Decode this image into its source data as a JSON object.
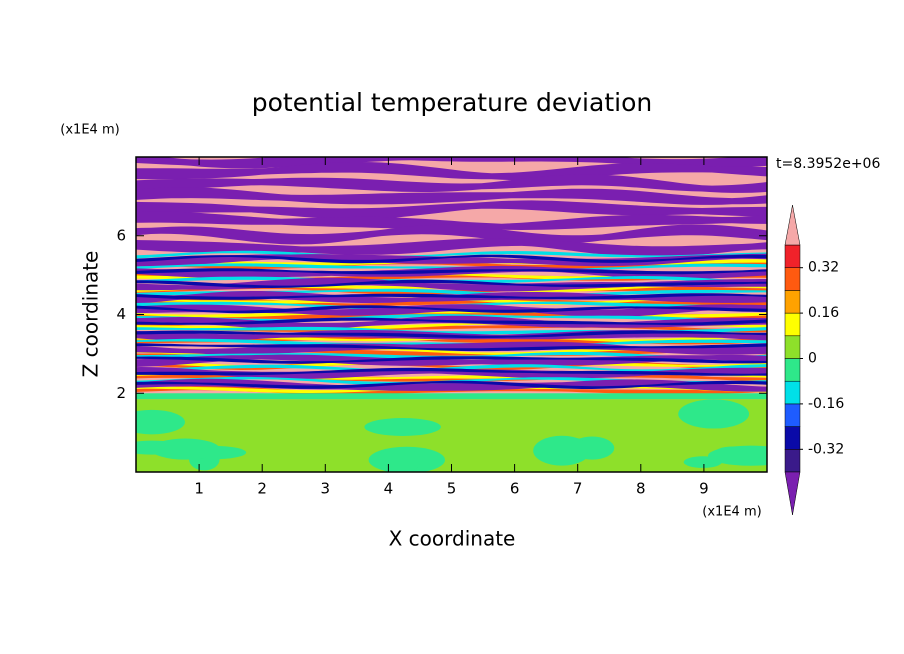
{
  "chart_data": {
    "type": "contour",
    "title": "potential temperature deviation",
    "xlabel": "X coordinate",
    "ylabel": "Z coordinate",
    "x_unit": "(x1E4 m)",
    "y_unit": "(x1E4 m)",
    "annotation": "t=8.3952e+06",
    "xlim": [
      0,
      10
    ],
    "xticks": [
      1,
      2,
      3,
      4,
      5,
      6,
      7,
      8,
      9
    ],
    "ylim": [
      0,
      8
    ],
    "yticks": [
      2,
      4,
      6
    ],
    "colorbar": {
      "lim": [
        -0.4,
        0.4
      ],
      "levels": [
        -0.4,
        -0.32,
        -0.24,
        -0.16,
        -0.08,
        0,
        0.08,
        0.16,
        0.24,
        0.32,
        0.4
      ],
      "colors": [
        "#3a1a8a",
        "#0a0aa8",
        "#1e5cff",
        "#00e0e8",
        "#2ee88a",
        "#8ee02a",
        "#ffff00",
        "#ffa200",
        "#ff5a10",
        "#f0222a"
      ],
      "under_color": "#7a1fb0",
      "over_color": "#f5a8a8",
      "ticks": [
        0.32,
        0.16,
        0,
        -0.16,
        -0.32
      ]
    }
  }
}
